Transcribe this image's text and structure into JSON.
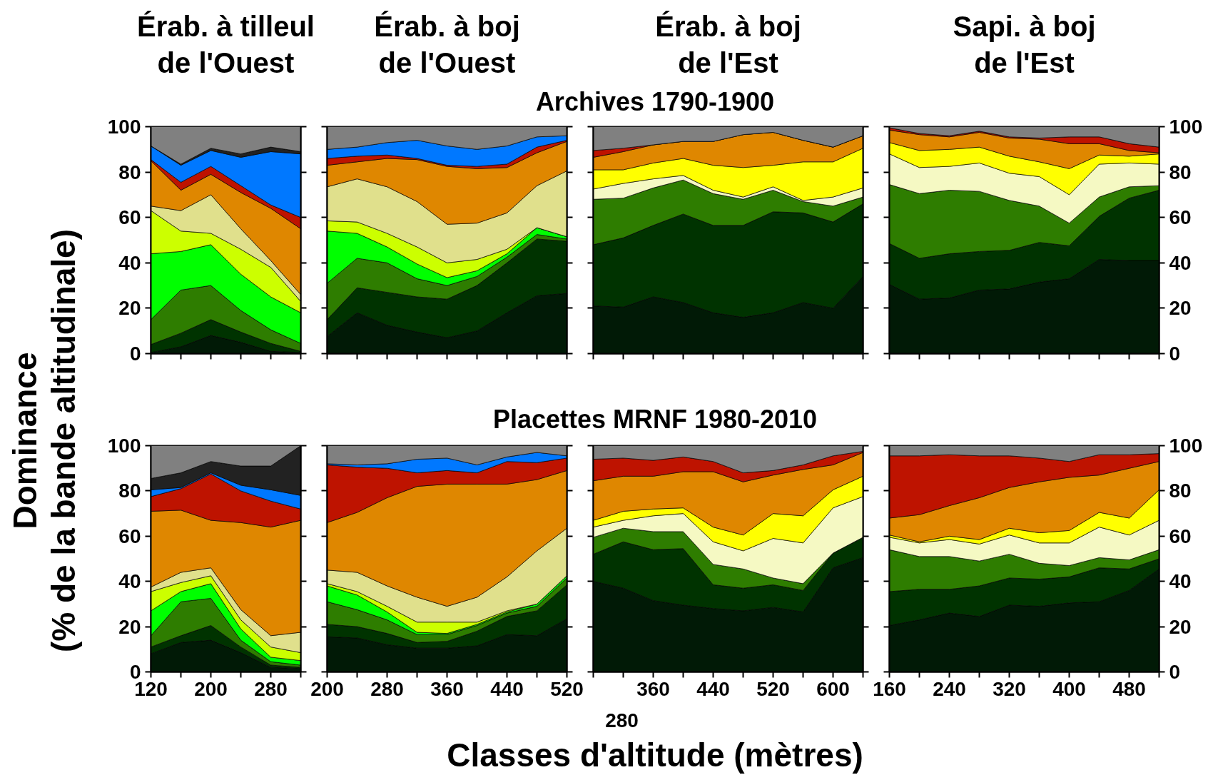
{
  "chart_data": [
    {
      "type": "area",
      "stacked": true,
      "title": "Érab. à tilleul\nde l'Ouest",
      "ylabel": "Dominance\n(% de la bande altitudinale)",
      "x": [
        120,
        160,
        200,
        240,
        280,
        320
      ],
      "xlim": [
        120,
        320
      ],
      "xticks": [
        120,
        {
          "value": 160,
          "label": null
        },
        200,
        {
          "value": 240,
          "label": null
        },
        280,
        {
          "value": 320,
          "label": null
        }
      ],
      "ylim": [
        0,
        100
      ],
      "yticks": [
        0,
        20,
        40,
        60,
        80,
        100
      ],
      "tick_labels": "y",
      "series": [
        {
          "color": "#011a06",
          "values": [
            0.5,
            3,
            8,
            5,
            1,
            0.5
          ]
        },
        {
          "color": "#003300",
          "values": [
            3.5,
            6,
            7,
            4.5,
            3.5,
            0.5
          ]
        },
        {
          "color": "#2e7d00",
          "values": [
            11,
            19,
            15,
            9.5,
            6,
            3.5
          ]
        },
        {
          "color": "#00ff00",
          "values": [
            29,
            17,
            18,
            16,
            14.5,
            13.5
          ]
        },
        {
          "color": "#ccff00",
          "values": [
            19,
            9,
            5,
            11,
            13,
            5
          ]
        },
        {
          "color": "#e0e08c",
          "values": [
            2,
            9,
            17,
            9,
            3,
            3
          ]
        },
        {
          "color": "#df8700",
          "values": [
            20,
            9,
            9,
            16,
            23,
            29
          ]
        },
        {
          "color": "#be1300",
          "values": [
            0.5,
            3.5,
            3.5,
            3,
            1.5,
            5
          ]
        },
        {
          "color": "#0078ff",
          "values": [
            6,
            7.5,
            7,
            12.5,
            23.5,
            28
          ]
        },
        {
          "color": "#222222",
          "values": [
            0,
            0.5,
            1,
            1.5,
            2,
            1
          ]
        },
        {
          "color": "#808080",
          "values": [
            8.5,
            16.5,
            9.5,
            12,
            9,
            11
          ]
        }
      ]
    },
    {
      "type": "area",
      "stacked": true,
      "title": "Érab. à boj\nde l'Ouest",
      "x": [
        200,
        240,
        280,
        320,
        360,
        400,
        440,
        480,
        520
      ],
      "xlim": [
        200,
        520
      ],
      "xticks": [
        200,
        {
          "value": 240,
          "label": null
        },
        280,
        {
          "value": 320,
          "label": null
        },
        360,
        {
          "value": 400,
          "label": null
        },
        440,
        {
          "value": 480,
          "label": null
        },
        520
      ],
      "ylim": [
        0,
        100
      ],
      "yticks": [
        0,
        20,
        40,
        60,
        80,
        100
      ],
      "tick_labels": false,
      "series": [
        {
          "color": "#011a06",
          "values": [
            7.5,
            18,
            12.5,
            9.5,
            7,
            10,
            18,
            25.5,
            26.5
          ]
        },
        {
          "color": "#003300",
          "values": [
            7.5,
            11,
            14.5,
            15.5,
            17,
            20,
            22,
            25,
            23
          ]
        },
        {
          "color": "#2e7d00",
          "values": [
            16,
            13,
            13,
            8,
            6,
            4,
            2.5,
            2,
            1
          ]
        },
        {
          "color": "#00ff00",
          "values": [
            23,
            11,
            7,
            6.5,
            3.5,
            2.5,
            1.5,
            3,
            1
          ]
        },
        {
          "color": "#ccff00",
          "values": [
            4.5,
            5,
            6,
            7.5,
            6.5,
            5,
            2,
            0,
            0
          ]
        },
        {
          "color": "#e0e08c",
          "values": [
            15,
            19,
            20.5,
            20,
            17,
            16,
            16,
            18.5,
            29
          ]
        },
        {
          "color": "#df8700",
          "values": [
            9.5,
            7.5,
            12.5,
            18.5,
            25.5,
            24,
            20,
            14.5,
            13
          ]
        },
        {
          "color": "#be1300",
          "values": [
            3,
            2.5,
            1.5,
            0.5,
            0.5,
            1,
            1.5,
            2.5,
            0.5
          ]
        },
        {
          "color": "#0078ff",
          "values": [
            4,
            4,
            5.5,
            8,
            8.5,
            7.5,
            8,
            4.5,
            2
          ]
        },
        {
          "color": "#808080",
          "values": [
            10,
            9,
            7,
            6,
            8.5,
            10,
            8.5,
            4.5,
            4
          ]
        }
      ]
    },
    {
      "type": "area",
      "stacked": true,
      "title": "Érab. à boj\nde l'Est",
      "subtitle": "Archives 1790-1900",
      "x": [
        280,
        320,
        360,
        400,
        440,
        480,
        520,
        560,
        600,
        640
      ],
      "xlim": [
        280,
        640
      ],
      "xticks": [
        {
          "value": 280,
          "label": null
        },
        {
          "value": 320,
          "label": null
        },
        360,
        {
          "value": 400,
          "label": null
        },
        440,
        {
          "value": 480,
          "label": null
        },
        520,
        {
          "value": 560,
          "label": null
        },
        600,
        {
          "value": 640,
          "label": null
        }
      ],
      "ylim": [
        0,
        100
      ],
      "yticks": [
        0,
        20,
        40,
        60,
        80,
        100
      ],
      "tick_labels": false,
      "series": [
        {
          "color": "#011a06",
          "values": [
            21,
            20.5,
            25,
            22.5,
            18,
            16,
            18,
            22.5,
            20,
            34
          ]
        },
        {
          "color": "#003300",
          "values": [
            27,
            30.5,
            31.5,
            39,
            38.5,
            40.5,
            44.5,
            39.5,
            38,
            32
          ]
        },
        {
          "color": "#2e7d00",
          "values": [
            20,
            17.5,
            16.5,
            15,
            14,
            11.5,
            9.5,
            5,
            7,
            3
          ]
        },
        {
          "color": "#f5f9c3",
          "values": [
            4.5,
            6.5,
            4,
            2,
            1.5,
            1,
            1.5,
            0.5,
            4,
            4
          ]
        },
        {
          "color": "#ffff00",
          "values": [
            8.5,
            6,
            7,
            7.5,
            11,
            13,
            9.5,
            17,
            15.5,
            17.5
          ]
        },
        {
          "color": "#df8700",
          "values": [
            5.5,
            8,
            8,
            7.5,
            10.5,
            14.5,
            14.5,
            9.5,
            6.5,
            5.5
          ]
        },
        {
          "color": "#be1300",
          "values": [
            3,
            1.5,
            0,
            0,
            0,
            0,
            0,
            0,
            0,
            0
          ]
        },
        {
          "color": "#808080",
          "values": [
            10.5,
            9.5,
            8,
            6.5,
            6.5,
            3.5,
            2.5,
            6,
            9,
            4
          ]
        }
      ]
    },
    {
      "type": "area",
      "stacked": true,
      "title": "Sapi. à boj\nde l'Est",
      "x": [
        160,
        200,
        240,
        280,
        320,
        360,
        400,
        440,
        480,
        520
      ],
      "xlim": [
        160,
        520
      ],
      "xticks": [
        160,
        {
          "value": 200,
          "label": null
        },
        240,
        {
          "value": 280,
          "label": null
        },
        320,
        {
          "value": 360,
          "label": null
        },
        400,
        {
          "value": 440,
          "label": null
        },
        480,
        {
          "value": 520,
          "label": null
        }
      ],
      "ylim": [
        0,
        100
      ],
      "yticks": [
        0,
        20,
        40,
        60,
        80,
        100
      ],
      "tick_labels": "y",
      "series": [
        {
          "color": "#011a06",
          "values": [
            30.5,
            24,
            24.5,
            28,
            28.5,
            31.5,
            33,
            41.5,
            41,
            41
          ]
        },
        {
          "color": "#003300",
          "values": [
            18,
            18,
            19.5,
            17,
            17,
            17.5,
            14.5,
            19,
            27.5,
            31
          ]
        },
        {
          "color": "#2e7d00",
          "values": [
            26,
            28.5,
            28,
            26.5,
            22,
            16,
            10,
            8.5,
            5,
            2
          ]
        },
        {
          "color": "#f5f9c3",
          "values": [
            13.5,
            11.5,
            10.5,
            12.5,
            12,
            13,
            12.5,
            14.5,
            10.5,
            9.5
          ]
        },
        {
          "color": "#ffff00",
          "values": [
            5,
            7.5,
            7.5,
            7,
            7.5,
            6.5,
            11.5,
            4,
            3,
            4.5
          ]
        },
        {
          "color": "#df8700",
          "values": [
            5.5,
            7,
            5.5,
            6.5,
            8,
            10,
            11,
            5,
            2.5,
            0.5
          ]
        },
        {
          "color": "#be1300",
          "values": [
            1,
            0.5,
            0.5,
            0.5,
            0.5,
            0.5,
            3,
            3,
            3,
            2.5
          ]
        },
        {
          "color": "#808080",
          "values": [
            0.5,
            3,
            4,
            2,
            4.5,
            5,
            4.5,
            4.5,
            7.5,
            9
          ]
        }
      ]
    },
    {
      "type": "area",
      "stacked": true,
      "xlabel": "Classes d'altitude (mètres)",
      "x": [
        120,
        160,
        200,
        240,
        280,
        320
      ],
      "xlim": [
        120,
        320
      ],
      "xticks": [
        120,
        {
          "value": 160,
          "label": null
        },
        200,
        {
          "value": 240,
          "label": null
        },
        280,
        {
          "value": 320,
          "label": null
        }
      ],
      "ylim": [
        0,
        100
      ],
      "yticks": [
        0,
        20,
        40,
        60,
        80,
        100
      ],
      "series": [
        {
          "color": "#011a06",
          "values": [
            8,
            13,
            14,
            8.5,
            2,
            1.5
          ]
        },
        {
          "color": "#003300",
          "values": [
            3,
            3,
            6.5,
            2.5,
            1,
            0.5
          ]
        },
        {
          "color": "#2e7d00",
          "values": [
            5,
            15,
            12,
            3,
            1.5,
            1
          ]
        },
        {
          "color": "#00ff00",
          "values": [
            11,
            4.5,
            6.5,
            5,
            2,
            2
          ]
        },
        {
          "color": "#ccff00",
          "values": [
            8.5,
            4,
            3.5,
            4,
            4.5,
            3.5
          ]
        },
        {
          "color": "#e0e08c",
          "values": [
            2,
            4.5,
            3.5,
            4.5,
            5,
            9
          ]
        },
        {
          "color": "#df8700",
          "values": [
            33.5,
            27.5,
            21,
            38.5,
            48,
            49.5
          ]
        },
        {
          "color": "#be1300",
          "values": [
            6.5,
            9.5,
            20.5,
            14,
            11.5,
            5
          ]
        },
        {
          "color": "#0078ff",
          "values": [
            3,
            0.5,
            0.5,
            2.5,
            5,
            6
          ]
        },
        {
          "color": "#222222",
          "values": [
            5,
            6.5,
            5,
            8.5,
            10.5,
            22
          ]
        },
        {
          "color": "#808080",
          "values": [
            14.5,
            12,
            7,
            9,
            9,
            0
          ]
        }
      ]
    },
    {
      "type": "area",
      "stacked": true,
      "x": [
        200,
        240,
        280,
        320,
        360,
        400,
        440,
        480,
        520
      ],
      "xlim": [
        200,
        520
      ],
      "xticks": [
        200,
        {
          "value": 240,
          "label": null
        },
        280,
        {
          "value": 320,
          "label": null
        },
        360,
        {
          "value": 400,
          "label": null
        },
        440,
        {
          "value": 480,
          "label": null
        },
        520
      ],
      "ylim": [
        0,
        100
      ],
      "yticks": [
        0,
        20,
        40,
        60,
        80,
        100
      ],
      "tick_labels": "x",
      "series": [
        {
          "color": "#011a06",
          "values": [
            15.5,
            15,
            12,
            10.5,
            10.5,
            11.5,
            16.5,
            16,
            23.5
          ]
        },
        {
          "color": "#003300",
          "values": [
            5.5,
            5,
            5,
            2.5,
            3,
            6.5,
            8,
            11,
            15
          ]
        },
        {
          "color": "#2e7d00",
          "values": [
            10,
            7.5,
            6,
            3.5,
            3,
            2.5,
            1.5,
            2,
            3
          ]
        },
        {
          "color": "#00ff00",
          "values": [
            7,
            6.5,
            3.5,
            1,
            0.5,
            0.5,
            0.5,
            1,
            1
          ]
        },
        {
          "color": "#ccff00",
          "values": [
            1,
            1.5,
            2.5,
            4.5,
            5,
            1,
            0.5,
            0,
            0
          ]
        },
        {
          "color": "#e0e08c",
          "values": [
            6,
            8.5,
            9,
            11,
            7,
            11,
            15,
            23.5,
            21
          ]
        },
        {
          "color": "#df8700",
          "values": [
            21,
            26.5,
            39,
            49,
            54,
            50,
            41,
            31.5,
            25.5
          ]
        },
        {
          "color": "#be1300",
          "values": [
            25.5,
            20,
            13,
            6,
            6,
            5,
            10,
            7.5,
            5.5
          ]
        },
        {
          "color": "#0078ff",
          "values": [
            0.5,
            1,
            2,
            6,
            5.5,
            3.5,
            2,
            4.5,
            1
          ]
        },
        {
          "color": "#808080",
          "values": [
            8,
            8.5,
            8,
            6,
            5.5,
            8.5,
            5,
            3,
            4.5
          ]
        }
      ]
    },
    {
      "type": "area",
      "stacked": true,
      "subtitle": "Placettes MRNF 1980-2010",
      "x": [
        280,
        320,
        360,
        400,
        440,
        480,
        520,
        560,
        600,
        640
      ],
      "xlim": [
        280,
        640
      ],
      "xticks": [
        {
          "value": 280,
          "label": null
        },
        {
          "value": 320,
          "label": null
        },
        360,
        {
          "value": 400,
          "label": null
        },
        440,
        {
          "value": 480,
          "label": null
        },
        520,
        {
          "value": 560,
          "label": null
        },
        600,
        {
          "value": 640,
          "label": null
        }
      ],
      "ylim": [
        0,
        100
      ],
      "yticks": [
        0,
        20,
        40,
        60,
        80,
        100
      ],
      "tick_labels": "x",
      "annotations": [
        {
          "text": "280",
          "x": 280,
          "y": 0
        }
      ],
      "series": [
        {
          "color": "#011a06",
          "values": [
            40,
            37,
            31.5,
            29.5,
            28,
            27,
            28.5,
            26.5,
            46,
            50.5
          ]
        },
        {
          "color": "#003300",
          "values": [
            12,
            20.5,
            22.5,
            25,
            10.5,
            10,
            10,
            9.5,
            6.5,
            9
          ]
        },
        {
          "color": "#2e7d00",
          "values": [
            7.5,
            6,
            8,
            7.5,
            9,
            8.5,
            3,
            3,
            0,
            0
          ]
        },
        {
          "color": "#f5f9c3",
          "values": [
            4.5,
            3.5,
            7,
            8,
            10,
            8,
            17.5,
            18,
            20,
            18
          ]
        },
        {
          "color": "#ffff00",
          "values": [
            3,
            4,
            3,
            2.5,
            6.5,
            7,
            11,
            12,
            8,
            9
          ]
        },
        {
          "color": "#df8700",
          "values": [
            17.5,
            15.5,
            14.5,
            16,
            24.5,
            23.5,
            17,
            20.5,
            11,
            10.5
          ]
        },
        {
          "color": "#be1300",
          "values": [
            9.5,
            8,
            7,
            6.5,
            4.5,
            4,
            2,
            2,
            4,
            0.5
          ]
        },
        {
          "color": "#808080",
          "values": [
            6,
            5.5,
            6.5,
            5,
            7,
            12,
            11,
            8.5,
            4.5,
            2.5
          ]
        }
      ]
    },
    {
      "type": "area",
      "stacked": true,
      "x": [
        160,
        200,
        240,
        280,
        320,
        360,
        400,
        440,
        480,
        520
      ],
      "xlim": [
        160,
        520
      ],
      "xticks": [
        160,
        {
          "value": 200,
          "label": null
        },
        240,
        {
          "value": 280,
          "label": null
        },
        320,
        {
          "value": 360,
          "label": null
        },
        400,
        {
          "value": 440,
          "label": null
        },
        480,
        {
          "value": 520,
          "label": null
        }
      ],
      "ylim": [
        0,
        100
      ],
      "yticks": [
        0,
        20,
        40,
        60,
        80,
        100
      ],
      "series": [
        {
          "color": "#011a06",
          "values": [
            20.5,
            23,
            26,
            24.5,
            29.5,
            29,
            30.5,
            31,
            36,
            45.5
          ]
        },
        {
          "color": "#003300",
          "values": [
            15,
            13.5,
            10.5,
            13.5,
            12,
            12,
            11.5,
            15,
            9.5,
            4.5
          ]
        },
        {
          "color": "#2e7d00",
          "values": [
            18.5,
            14.5,
            14.5,
            11,
            10.5,
            7,
            5,
            4.5,
            4,
            4
          ]
        },
        {
          "color": "#f5f9c3",
          "values": [
            5.5,
            6,
            7.5,
            7.5,
            8.5,
            9,
            10,
            13.5,
            11,
            13
          ]
        },
        {
          "color": "#ffff00",
          "values": [
            1,
            0.5,
            1.5,
            2,
            3,
            4.5,
            5.5,
            6.5,
            7.5,
            13.5
          ]
        },
        {
          "color": "#df8700",
          "values": [
            7.5,
            12,
            13.5,
            18.5,
            18,
            22.5,
            23.5,
            16.5,
            22,
            12.5
          ]
        },
        {
          "color": "#be1300",
          "values": [
            27.5,
            26,
            22.5,
            18.5,
            14,
            10.5,
            7,
            9,
            6,
            3.5
          ]
        },
        {
          "color": "#808080",
          "values": [
            4.5,
            4.5,
            4,
            4.5,
            4.5,
            5.5,
            7,
            4,
            4,
            3.5
          ]
        }
      ]
    }
  ]
}
